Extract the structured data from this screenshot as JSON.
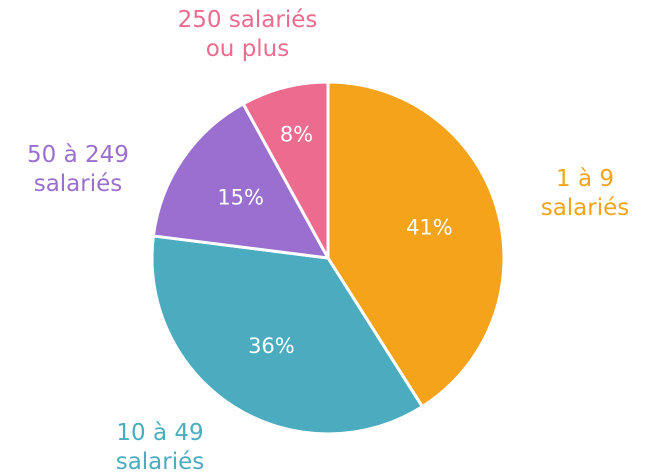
{
  "chart_data": {
    "type": "pie",
    "categories": [
      "1 à 9 salariés",
      "10 à 49 salariés",
      "50 à 249 salariés",
      "250 salariés ou plus"
    ],
    "values": [
      41,
      36,
      15,
      8
    ],
    "value_labels": [
      "41%",
      "36%",
      "15%",
      "8%"
    ],
    "colors": [
      "#f5a31a",
      "#4bacc0",
      "#9a6fd0",
      "#ec6b8e"
    ]
  }
}
